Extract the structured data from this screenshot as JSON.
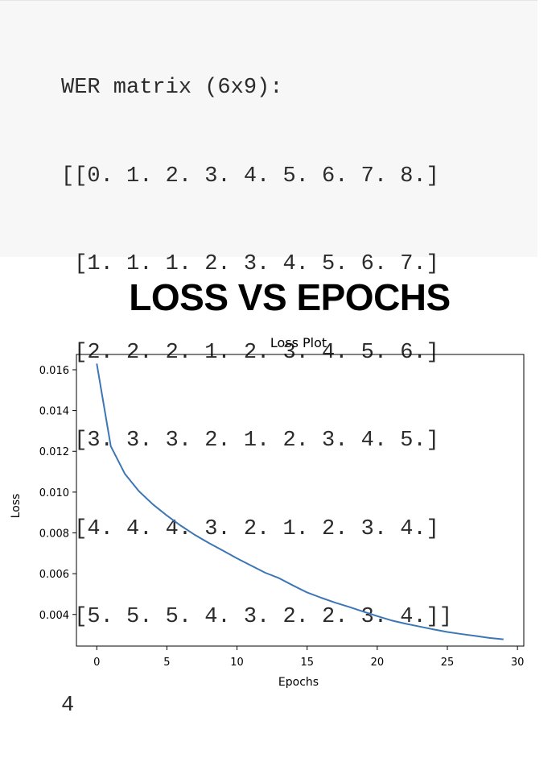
{
  "output": {
    "header": "WER matrix (6x9):",
    "matrix_lines": [
      "[[0. 1. 2. 3. 4. 5. 6. 7. 8.]",
      " [1. 1. 1. 2. 3. 4. 5. 6. 7.]",
      " [2. 2. 2. 1. 2. 3. 4. 5. 6.]",
      " [3. 3. 3. 2. 1. 2. 3. 4. 5.]",
      " [4. 4. 4. 3. 2. 1. 2. 3. 4.]",
      " [5. 5. 5. 4. 3. 2. 2. 3. 4.]]"
    ],
    "result": "4"
  },
  "heading": "LOSS VS EPOCHS",
  "chart_data": {
    "type": "line",
    "title": "Loss Plot",
    "xlabel": "Epochs",
    "ylabel": "Loss",
    "xlim": [
      -1.45,
      30.45
    ],
    "ylim": [
      0.00245,
      0.01675
    ],
    "xticks": [
      0,
      5,
      10,
      15,
      20,
      25,
      30
    ],
    "xtick_labels": [
      "0",
      "5",
      "10",
      "15",
      "20",
      "25",
      "30"
    ],
    "yticks": [
      0.004,
      0.006,
      0.008,
      0.01,
      0.012,
      0.014,
      0.016
    ],
    "ytick_labels": [
      "0.004",
      "0.006",
      "0.008",
      "0.010",
      "0.012",
      "0.014",
      "0.016"
    ],
    "grid": false,
    "series": [
      {
        "color": "#3d76b5",
        "x": [
          0,
          1,
          2,
          3,
          4,
          5,
          6,
          7,
          8,
          9,
          10,
          11,
          12,
          13,
          14,
          15,
          16,
          17,
          18,
          19,
          20,
          21,
          22,
          23,
          24,
          25,
          26,
          27,
          28,
          29
        ],
        "values": [
          0.0163,
          0.01225,
          0.0109,
          0.01005,
          0.0094,
          0.00885,
          0.00835,
          0.0079,
          0.0075,
          0.00713,
          0.00675,
          0.0064,
          0.00605,
          0.00578,
          0.00542,
          0.00508,
          0.00482,
          0.00458,
          0.00437,
          0.00414,
          0.00392,
          0.00371,
          0.00355,
          0.00341,
          0.00327,
          0.00314,
          0.00304,
          0.00295,
          0.00285,
          0.00278
        ]
      }
    ]
  }
}
